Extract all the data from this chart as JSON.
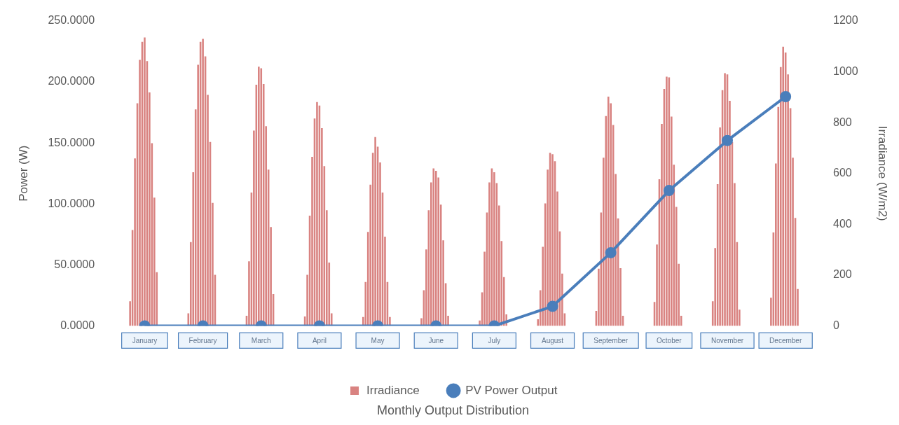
{
  "chart_data": {
    "type": "bar",
    "xlabel": "Monthly Output Distribution",
    "ylabel": "Power (W)",
    "y2label": "Irradiance (W/m2)",
    "categories": [
      null,
      null,
      null,
      null,
      null,
      null,
      null,
      null,
      null,
      null,
      null,
      null,
      "January",
      null,
      null,
      null,
      null,
      null,
      null,
      null,
      null,
      null,
      null,
      null,
      null,
      null,
      null,
      null,
      null,
      null,
      null,
      null,
      null,
      null,
      null,
      null,
      "February",
      null,
      null,
      null,
      null,
      null,
      null,
      null,
      null,
      null,
      null,
      null,
      null,
      null,
      null,
      null,
      null,
      null,
      null,
      null,
      null,
      null,
      null,
      null,
      "March",
      null,
      null,
      null,
      null,
      null,
      null,
      null,
      null,
      null,
      null,
      null,
      null,
      null,
      null,
      null,
      null,
      null,
      null,
      null,
      null,
      null,
      null,
      null,
      "April",
      null,
      null,
      null,
      null,
      null,
      null,
      null,
      null,
      null,
      null,
      null,
      null,
      null,
      null,
      null,
      null,
      null,
      null,
      null,
      null,
      null,
      null,
      null,
      "May",
      null,
      null,
      null,
      null,
      null,
      null,
      null,
      null,
      null,
      null,
      null,
      null,
      null,
      null,
      null,
      null,
      null,
      null,
      null,
      null,
      null,
      null,
      null,
      "June",
      null,
      null,
      null,
      null,
      null,
      null,
      null,
      null,
      null,
      null,
      null,
      null,
      null,
      null,
      null,
      null,
      null,
      null,
      null,
      null,
      null,
      null,
      null,
      "July",
      null,
      null,
      null,
      null,
      null,
      null,
      null,
      null,
      null,
      null,
      null,
      null,
      null,
      null,
      null,
      null,
      null,
      null,
      null,
      null,
      null,
      null,
      null,
      "August",
      null,
      null,
      null,
      null,
      null,
      null,
      null,
      null,
      null,
      null,
      null,
      null,
      null,
      null,
      null,
      null,
      null,
      null,
      null,
      null,
      null,
      null,
      null,
      "September",
      null,
      null,
      null,
      null,
      null,
      null,
      null,
      null,
      null,
      null,
      null,
      null,
      null,
      null,
      null,
      null,
      null,
      null,
      null,
      null,
      null,
      null,
      null,
      "October",
      null,
      null,
      null,
      null,
      null,
      null,
      null,
      null,
      null,
      null,
      null,
      null,
      null,
      null,
      null,
      null,
      null,
      null,
      null,
      null,
      null,
      null,
      null,
      "November",
      null,
      null,
      null,
      null,
      null,
      null,
      null,
      null,
      null,
      null,
      null,
      null,
      null,
      null,
      null,
      null,
      null,
      null,
      null,
      null,
      null,
      null,
      null,
      "December",
      null,
      null,
      null,
      null,
      null,
      null,
      null,
      null,
      null,
      null,
      null
    ],
    "series": [
      {
        "name": "Irradiance",
        "axis": "y2",
        "color": "#d98381",
        "values": [
          0,
          0,
          0,
          0,
          0,
          0,
          97,
          377,
          659,
          876,
          1047,
          1118,
          1135,
          1042,
          919,
          719,
          505,
          211,
          0,
          0,
          0,
          0,
          0,
          0,
          0,
          0,
          0,
          0,
          0,
          0,
          49,
          330,
          605,
          852,
          1028,
          1118,
          1130,
          1061,
          909,
          724,
          484,
          201,
          0,
          0,
          0,
          0,
          0,
          0,
          0,
          0,
          0,
          0,
          0,
          0,
          40,
          254,
          525,
          769,
          949,
          1020,
          1014,
          952,
          786,
          615,
          389,
          125,
          0,
          0,
          0,
          0,
          0,
          0,
          0,
          0,
          0,
          0,
          0,
          0,
          37,
          201,
          434,
          665,
          816,
          881,
          867,
          778,
          629,
          455,
          249,
          49,
          0,
          0,
          0,
          0,
          0,
          0,
          0,
          0,
          0,
          0,
          0,
          0,
          35,
          173,
          370,
          556,
          681,
          743,
          705,
          643,
          525,
          351,
          173,
          35,
          0,
          0,
          0,
          0,
          0,
          0,
          0,
          0,
          0,
          0,
          0,
          0,
          30,
          140,
          301,
          455,
          565,
          620,
          610,
          584,
          477,
          337,
          168,
          40,
          0,
          0,
          0,
          0,
          0,
          0,
          0,
          0,
          0,
          0,
          0,
          0,
          21,
          132,
          292,
          446,
          565,
          620,
          605,
          562,
          474,
          334,
          192,
          45,
          0,
          0,
          0,
          0,
          0,
          0,
          0,
          0,
          0,
          0,
          0,
          0,
          26,
          140,
          311,
          482,
          615,
          681,
          676,
          648,
          529,
          372,
          206,
          49,
          0,
          0,
          0,
          0,
          0,
          0,
          0,
          0,
          0,
          0,
          0,
          0,
          59,
          225,
          446,
          662,
          826,
          902,
          876,
          791,
          598,
          423,
          227,
          40,
          0,
          0,
          0,
          0,
          0,
          0,
          0,
          0,
          0,
          0,
          0,
          0,
          94,
          320,
          577,
          795,
          933,
          981,
          978,
          824,
          634,
          468,
          244,
          40,
          0,
          0,
          0,
          0,
          0,
          0,
          0,
          0,
          0,
          0,
          0,
          0,
          97,
          306,
          558,
          781,
          928,
          995,
          990,
          886,
          724,
          562,
          330,
          64,
          0,
          0,
          0,
          0,
          0,
          0,
          0,
          0,
          0,
          0,
          0,
          0,
          111,
          368,
          639,
          862,
          1019,
          1099,
          1076,
          990,
          857,
          662,
          425,
          145,
          0,
          0,
          0,
          0,
          0,
          0
        ]
      },
      {
        "name": "PV Power Output",
        "type": "line",
        "axis": "y",
        "color": "#4a7ebb",
        "x": [
          "January",
          "February",
          "March",
          "April",
          "May",
          "June",
          "July",
          "August",
          "September",
          "October",
          "November",
          "December"
        ],
        "values": [
          0,
          0,
          0,
          0,
          0,
          0,
          0,
          16,
          60,
          111,
          152,
          188
        ]
      }
    ],
    "ylim": [
      0,
      250
    ],
    "yticks": [
      {
        "value": 0,
        "label": "0.0000"
      },
      {
        "value": 50,
        "label": "50.0000"
      },
      {
        "value": 100,
        "label": "100.0000"
      },
      {
        "value": 150,
        "label": "150.0000"
      },
      {
        "value": 200,
        "label": "200.0000"
      },
      {
        "value": 250,
        "label": "250.0000"
      }
    ],
    "y2lim": [
      0,
      1200
    ],
    "y2ticks": [
      0,
      200,
      400,
      600,
      800,
      1000,
      1200
    ],
    "grid": false,
    "legend": "bottom",
    "marker": "circle",
    "line_style": "solid"
  }
}
